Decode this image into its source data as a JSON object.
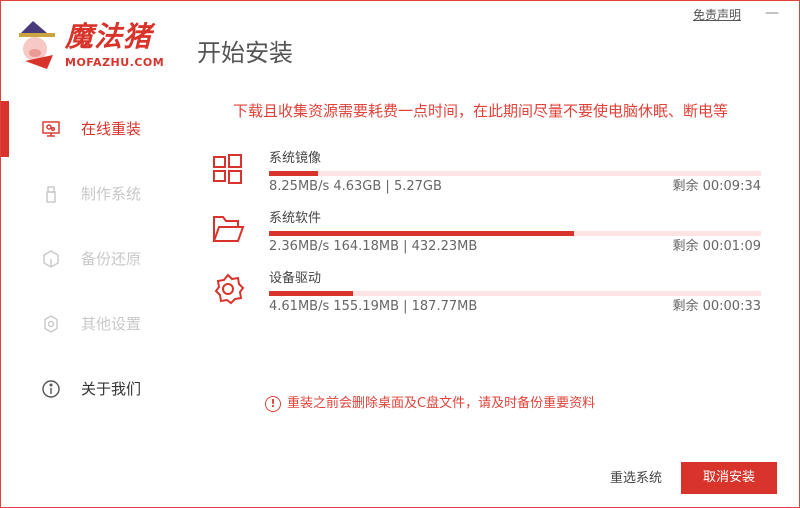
{
  "header": {
    "brand": "魔法猪",
    "brand_domain": "MOFAZHU.COM",
    "title": "开始安装",
    "disclaimer": "免责声明",
    "minimize": "—"
  },
  "colors": {
    "accent": "#d9342b",
    "track": "#fde3e3",
    "disabled": "#c8c8c8"
  },
  "sidebar": {
    "items": [
      {
        "label": "在线重装",
        "icon": "monitor-icon",
        "state": "active"
      },
      {
        "label": "制作系统",
        "icon": "usb-icon",
        "state": "disabled"
      },
      {
        "label": "备份还原",
        "icon": "cube-icon",
        "state": "disabled"
      },
      {
        "label": "其他设置",
        "icon": "gear-icon",
        "state": "disabled"
      },
      {
        "label": "关于我们",
        "icon": "info-icon",
        "state": "normal"
      }
    ]
  },
  "main": {
    "notice": "下载且收集资源需要耗费一点时间，在此期间尽量不要使电脑休眠、断电等",
    "downloads": [
      {
        "name": "系统镜像",
        "icon": "windows-icon",
        "stats": "8.25MB/s 4.63GB | 5.27GB",
        "remaining": "剩余 00:09:34",
        "progress": 0.1
      },
      {
        "name": "系统软件",
        "icon": "folder-icon",
        "stats": "2.36MB/s 164.18MB | 432.23MB",
        "remaining": "剩余 00:01:09",
        "progress": 0.62
      },
      {
        "name": "设备驱动",
        "icon": "gear-icon",
        "stats": "4.61MB/s 155.19MB | 187.77MB",
        "remaining": "剩余 00:00:33",
        "progress": 0.17
      }
    ],
    "warning": "重装之前会删除桌面及C盘文件，请及时备份重要资料",
    "reselect_label": "重选系统",
    "cancel_label": "取消安装"
  }
}
